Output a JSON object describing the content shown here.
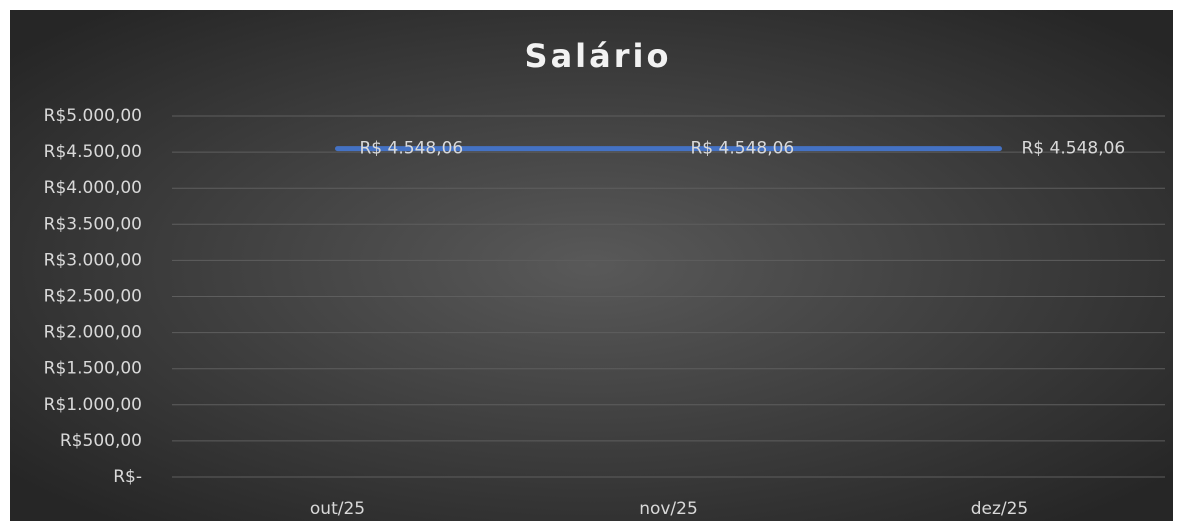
{
  "chart_data": {
    "type": "line",
    "title": "Salário",
    "categories": [
      "out/25",
      "nov/25",
      "dez/25"
    ],
    "series": [
      {
        "name": "Salário",
        "color": "#4472c4",
        "values": [
          4548.06,
          4548.06,
          4548.06
        ],
        "value_labels": [
          "R$ 4.548,06",
          "R$ 4.548,06",
          "R$ 4.548,06"
        ]
      }
    ],
    "ylim": [
      0,
      5000
    ],
    "yticks": [
      {
        "value": 0,
        "label": "R$-"
      },
      {
        "value": 500,
        "label": "R$500,00"
      },
      {
        "value": 1000,
        "label": "R$1.000,00"
      },
      {
        "value": 1500,
        "label": "R$1.500,00"
      },
      {
        "value": 2000,
        "label": "R$2.000,00"
      },
      {
        "value": 2500,
        "label": "R$2.500,00"
      },
      {
        "value": 3000,
        "label": "R$3.000,00"
      },
      {
        "value": 3500,
        "label": "R$3.500,00"
      },
      {
        "value": 4000,
        "label": "R$4.000,00"
      },
      {
        "value": 4500,
        "label": "R$4.500,00"
      },
      {
        "value": 5000,
        "label": "R$5.000,00"
      }
    ],
    "grid": true
  }
}
